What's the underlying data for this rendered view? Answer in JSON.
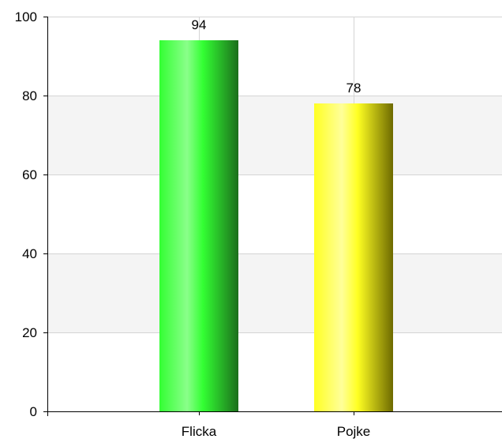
{
  "chart_data": {
    "type": "bar",
    "title": "",
    "xlabel": "",
    "ylabel": "",
    "categories": [
      "Flicka",
      "Pojke"
    ],
    "values": [
      94,
      78
    ],
    "data_labels": [
      "94",
      "78"
    ],
    "ylim": [
      0,
      100
    ],
    "yticks": [
      0,
      20,
      40,
      60,
      80,
      100
    ],
    "ytick_labels": [
      "0",
      "20",
      "40",
      "60",
      "80",
      "100"
    ],
    "grid": true,
    "alternating_band_color": "#f4f4f4",
    "bar_colors": [
      {
        "light": "#8aff8a",
        "base": "#33ff33",
        "dark": "#1c6e1c"
      },
      {
        "light": "#ffff9a",
        "base": "#ffff22",
        "dark": "#6e6a00"
      }
    ]
  }
}
